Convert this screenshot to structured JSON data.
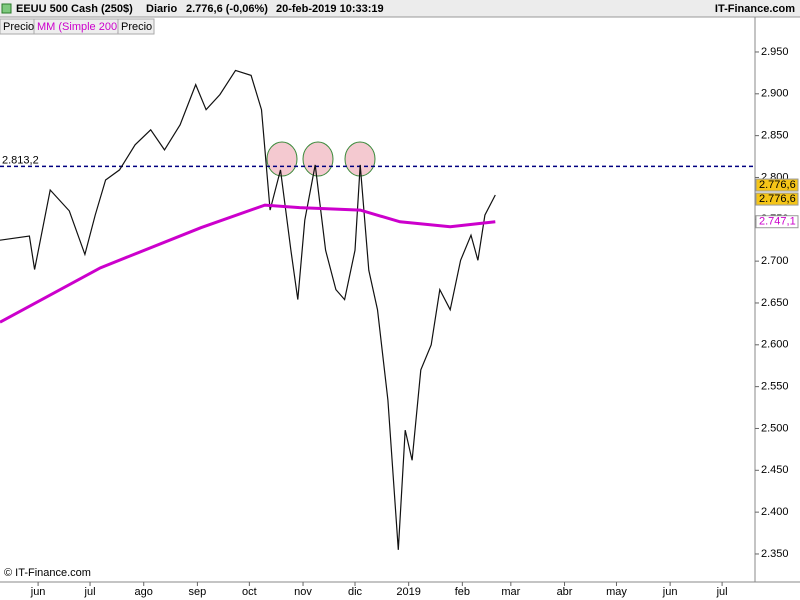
{
  "chart_data": {
    "type": "line",
    "title": "EEUU 500 Cash (250$)",
    "period": "Diario",
    "quote": "2.776,6 (-0,06%)",
    "timestamp": "20-feb-2019 10:33:19",
    "brand": "IT-Finance.com",
    "copyright": "© IT-Finance.com",
    "legend": [
      "Precio",
      "MM (Simple 200)",
      "Precio"
    ],
    "series": [
      {
        "name": "Precio",
        "color": "#111111",
        "x": [
          129,
          146,
          149,
          158,
          169,
          178,
          184,
          190,
          198,
          207,
          216,
          224,
          233,
          242,
          248,
          256,
          265,
          274,
          280,
          285,
          291,
          297,
          301,
          305,
          311,
          317,
          323,
          328,
          334,
          337,
          342,
          347,
          353,
          359,
          363,
          367,
          372,
          378,
          383,
          389,
          395,
          401,
          405,
          409,
          415
        ],
        "values": [
          2725,
          2730,
          2690,
          2785,
          2760,
          2708,
          2755,
          2797,
          2809,
          2839,
          2857,
          2833,
          2863,
          2911,
          2881,
          2899,
          2928,
          2922,
          2881,
          2761,
          2809,
          2713,
          2654,
          2749,
          2815,
          2713,
          2666,
          2654,
          2713,
          2815,
          2689,
          2642,
          2534,
          2355,
          2498,
          2462,
          2570,
          2600,
          2666,
          2642,
          2701,
          2731,
          2701,
          2755,
          2779
        ]
      },
      {
        "name": "MM (Simple 200)",
        "color": "#cc00cc",
        "x": [
          129,
          187,
          245,
          282,
          302,
          337,
          360,
          389,
          415
        ],
        "values": [
          2627,
          2692,
          2740,
          2767,
          2764,
          2761,
          2747,
          2741,
          2747
        ]
      }
    ],
    "hline": {
      "value": 2813.2,
      "label": "2.813,2",
      "color": "#000080"
    },
    "price_tags": [
      {
        "value": 2776.6,
        "label": "2.776,6",
        "color": "#f5c518"
      },
      {
        "value": 2776.6,
        "label": "2.776,6",
        "color": "#f5c518"
      },
      {
        "value": 2747.1,
        "label": "2.747,1",
        "color": "#ffffff"
      }
    ],
    "xlim": [
      129,
      565
    ],
    "xticks": [
      {
        "value": 151,
        "label": "jun"
      },
      {
        "value": 181,
        "label": "jul"
      },
      {
        "value": 212,
        "label": "ago"
      },
      {
        "value": 243,
        "label": "sep"
      },
      {
        "value": 273,
        "label": "oct"
      },
      {
        "value": 304,
        "label": "nov"
      },
      {
        "value": 334,
        "label": "dic"
      },
      {
        "value": 365,
        "label": "2019"
      },
      {
        "value": 396,
        "label": "feb"
      },
      {
        "value": 424,
        "label": "mar"
      },
      {
        "value": 455,
        "label": "abr"
      },
      {
        "value": 485,
        "label": "may"
      },
      {
        "value": 516,
        "label": "jun"
      },
      {
        "value": 546,
        "label": "jul"
      }
    ],
    "ylim": [
      2316.5,
      2991.8
    ],
    "yticks": [
      {
        "value": 2350,
        "label": "2.350"
      },
      {
        "value": 2400,
        "label": "2.400"
      },
      {
        "value": 2450,
        "label": "2.450"
      },
      {
        "value": 2500,
        "label": "2.500"
      },
      {
        "value": 2550,
        "label": "2.550"
      },
      {
        "value": 2600,
        "label": "2.600"
      },
      {
        "value": 2650,
        "label": "2.650"
      },
      {
        "value": 2700,
        "label": "2.700"
      },
      {
        "value": 2750,
        "label": "2.750"
      },
      {
        "value": 2800,
        "label": "2.800"
      },
      {
        "value": 2850,
        "label": "2.850"
      },
      {
        "value": 2900,
        "label": "2.900"
      },
      {
        "value": 2950,
        "label": "2.950"
      }
    ]
  }
}
